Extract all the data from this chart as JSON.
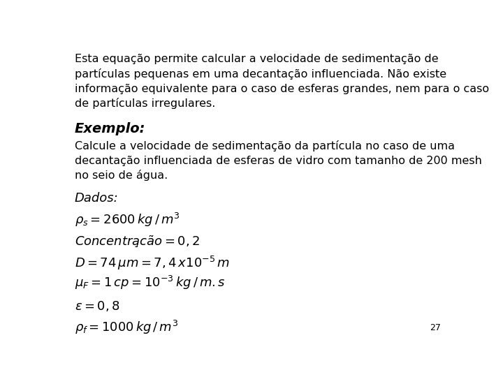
{
  "background_color": "#ffffff",
  "page_number": "27",
  "paragraph1_lines": [
    "Esta equação permite calcular a velocidade de sedimentação de",
    "partículas pequenas em uma decantação influenciada. Não existe",
    "informação equivalente para o caso de esferas grandes, nem para o caso",
    "de partículas irregulares."
  ],
  "exemplo_label": "Exemplo:",
  "paragraph2_lines": [
    "Calcule a velocidade de sedimentação da partícula no caso de uma",
    "decantação influenciada de esferas de vidro com tamanho de 200 mesh",
    "no seio de água."
  ],
  "dados_label": "Dados:",
  "text_color": "#000000",
  "font_size_body": 11.5,
  "font_size_exemplo": 14,
  "font_size_dados": 13,
  "font_size_formula": 13,
  "font_size_page": 9
}
